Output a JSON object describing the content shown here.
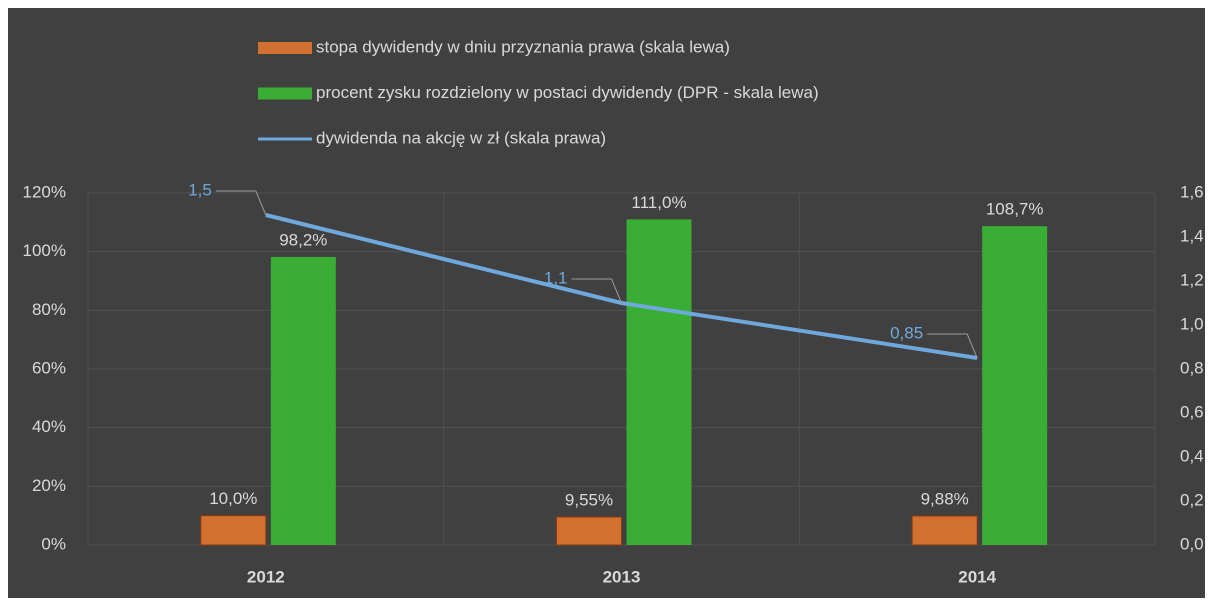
{
  "chart_data": {
    "type": "bar",
    "categories": [
      "2012",
      "2013",
      "2014"
    ],
    "series": [
      {
        "name": "stopa dywidendy w dniu przyznania prawa (skala lewa)",
        "type": "bar",
        "color": "#d2702f",
        "values": [
          10.0,
          9.55,
          9.88
        ],
        "value_labels": [
          "10,0%",
          "9,55%",
          "9,88%"
        ]
      },
      {
        "name": "procent zysku rozdzielony w postaci dywidendy (DPR - skala lewa)",
        "type": "bar",
        "color": "#3aae34",
        "values": [
          98.2,
          111.0,
          108.7
        ],
        "value_labels": [
          "98,2%",
          "111,0%",
          "108,7%"
        ]
      },
      {
        "name": "dywidenda na akcję w zł (skala prawa)",
        "type": "line",
        "axis": "y2",
        "color": "#6fa8dc",
        "values": [
          1.5,
          1.1,
          0.85
        ],
        "value_labels": [
          "1,5",
          "1,1",
          "0,85"
        ]
      }
    ],
    "ylim": [
      0,
      120
    ],
    "yticks": [
      {
        "value": 0,
        "label": "0%"
      },
      {
        "value": 20,
        "label": "20%"
      },
      {
        "value": 40,
        "label": "40%"
      },
      {
        "value": 60,
        "label": "60%"
      },
      {
        "value": 80,
        "label": "80%"
      },
      {
        "value": 100,
        "label": "100%"
      },
      {
        "value": 120,
        "label": "120%"
      }
    ],
    "y2lim": [
      0,
      1.6
    ],
    "y2ticks": [
      {
        "value": 0,
        "label": "0,0"
      },
      {
        "value": 0.2,
        "label": "0,2"
      },
      {
        "value": 0.4,
        "label": "0,4"
      },
      {
        "value": 0.6,
        "label": "0,6"
      },
      {
        "value": 0.8,
        "label": "0,8"
      },
      {
        "value": 1.0,
        "label": "1,0"
      },
      {
        "value": 1.2,
        "label": "1,2"
      },
      {
        "value": 1.4,
        "label": "1,4"
      },
      {
        "value": 1.6,
        "label": "1,6"
      }
    ],
    "grid": true,
    "legend": "top"
  }
}
